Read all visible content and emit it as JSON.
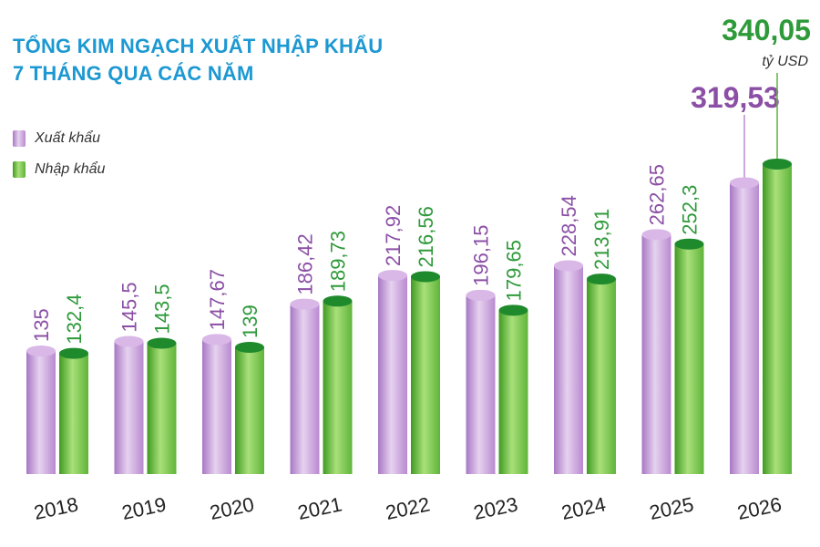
{
  "chart_data": {
    "type": "bar",
    "title_line1": "TỔNG KIM NGẠCH XUẤT NHẬP KHẨU",
    "title_line2": "7 THÁNG QUA CÁC NĂM",
    "unit": "tỷ USD",
    "categories": [
      "2018",
      "2019",
      "2020",
      "2021",
      "2022",
      "2023",
      "2024",
      "2025",
      "2026"
    ],
    "series": [
      {
        "name": "Xuất khẩu",
        "color": "#b98ad0",
        "values": [
          135,
          145.5,
          147.67,
          186.42,
          217.92,
          196.15,
          228.54,
          262.65,
          319.53
        ],
        "labels": [
          "135",
          "145,5",
          "147,67",
          "186,42",
          "217,92",
          "196,15",
          "228,54",
          "262,65",
          "319,53"
        ]
      },
      {
        "name": "Nhập khẩu",
        "color": "#5fb43a",
        "values": [
          132.4,
          143.5,
          139,
          189.73,
          216.56,
          179.65,
          213.91,
          252.3,
          340.05
        ],
        "labels": [
          "132,4",
          "143,5",
          "139",
          "189,73",
          "216,56",
          "179,65",
          "213,91",
          "252,3",
          "340,05"
        ]
      }
    ],
    "legend_position": "top-left",
    "grid": false
  }
}
